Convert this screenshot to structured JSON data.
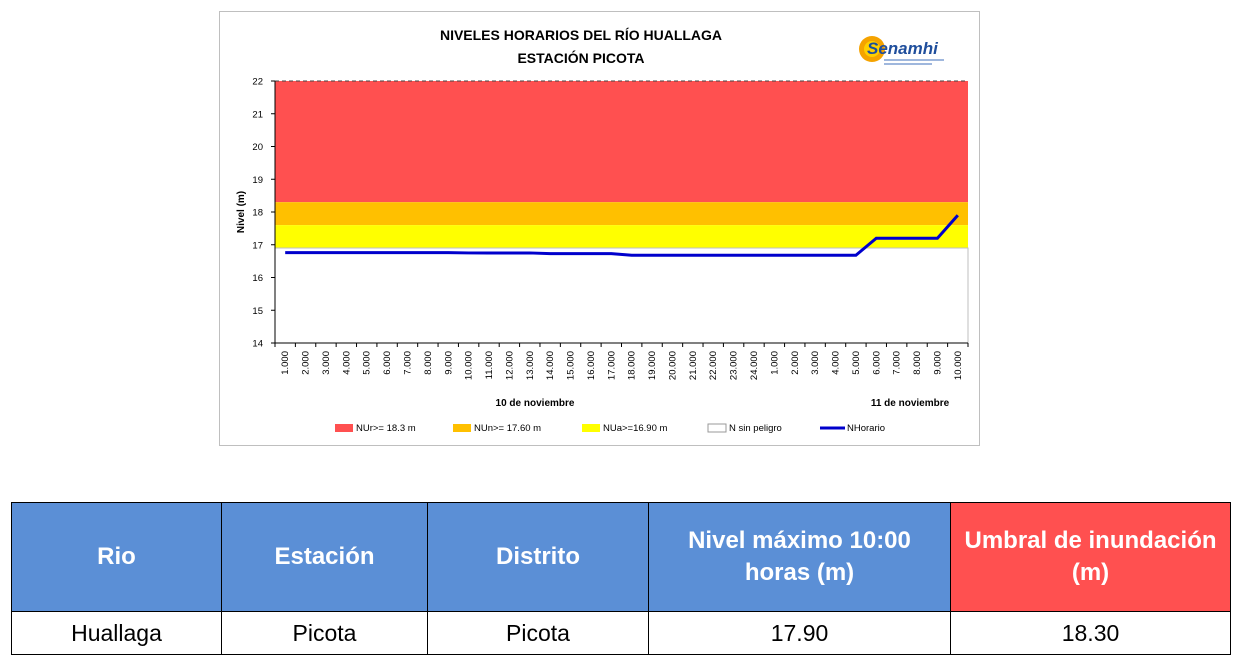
{
  "chart_data": {
    "type": "line",
    "title": "NIVELES HORARIOS DEL RÍO HUALLAGA",
    "subtitle": "ESTACIÓN PICOTA",
    "logo_text": "Senamhi",
    "ylabel": "Nivel (m)",
    "ylim": [
      14,
      22
    ],
    "yticks": [
      14,
      15,
      16,
      17,
      18,
      19,
      20,
      21,
      22
    ],
    "x_labels": [
      "1.000",
      "2.000",
      "3.000",
      "4.000",
      "5.000",
      "6.000",
      "7.000",
      "8.000",
      "9.000",
      "10.000",
      "11.000",
      "12.000",
      "13.000",
      "14.000",
      "15.000",
      "16.000",
      "17.000",
      "18.000",
      "19.000",
      "20.000",
      "21.000",
      "22.000",
      "23.000",
      "24.000",
      "1.000",
      "2.000",
      "3.000",
      "4.000",
      "5.000",
      "6.000",
      "7.000",
      "8.000",
      "9.000",
      "10.000"
    ],
    "day_labels": [
      "10 de noviembre",
      "11 de noviembre"
    ],
    "bands": [
      {
        "name": "NUr>= 18.3 m",
        "from": 18.3,
        "to": 22,
        "color": "#ff5050"
      },
      {
        "name": "NUn>= 17.60 m",
        "from": 17.6,
        "to": 18.3,
        "color": "#ffc000"
      },
      {
        "name": "NUa>=16.90 m",
        "from": 16.9,
        "to": 17.6,
        "color": "#ffff00"
      },
      {
        "name": "N sin peligro",
        "from": 14,
        "to": 16.9,
        "color": "#ffffff"
      }
    ],
    "series": [
      {
        "name": "NHorario",
        "color": "#0000cc",
        "values": [
          16.76,
          16.76,
          16.76,
          16.76,
          16.76,
          16.76,
          16.76,
          16.76,
          16.76,
          16.75,
          16.75,
          16.75,
          16.75,
          16.73,
          16.73,
          16.73,
          16.73,
          16.68,
          16.68,
          16.68,
          16.68,
          16.68,
          16.68,
          16.68,
          16.68,
          16.68,
          16.68,
          16.68,
          16.68,
          17.2,
          17.2,
          17.2,
          17.2,
          17.9
        ]
      }
    ],
    "grid": false,
    "legend_position": "bottom"
  },
  "table": {
    "headers": [
      "Rio",
      "Estación",
      "Distrito",
      "Nivel máximo 10:00 horas (m)",
      "Umbral de inundación (m)"
    ],
    "row": [
      "Huallaga",
      "Picota",
      "Picota",
      "17.90",
      "18.30"
    ]
  }
}
